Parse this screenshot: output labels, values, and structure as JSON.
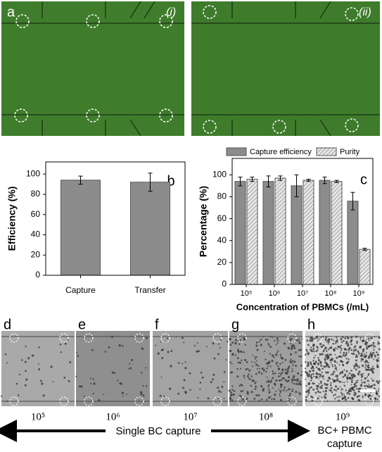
{
  "panel_a": {
    "label": "a",
    "images": [
      "(i)",
      "(ii)"
    ]
  },
  "chart_data": [
    {
      "type": "bar",
      "panel_label": "b",
      "ylabel": "Efficiency (%)",
      "categories": [
        "Capture",
        "Transfer"
      ],
      "values": [
        94,
        92
      ],
      "errors": [
        4,
        9
      ],
      "color": "#8c8c8c",
      "ylim": [
        0,
        112
      ],
      "yticks": [
        0,
        20,
        40,
        60,
        80,
        100
      ]
    },
    {
      "type": "grouped-bar",
      "panel_label": "c",
      "xlabel": "Concentration of PBMCs (/mL)",
      "ylabel": "Percentage (%)",
      "categories": [
        "10⁵",
        "10⁶",
        "10⁷",
        "10⁸",
        "10⁹"
      ],
      "legend": "top",
      "series": [
        {
          "name": "Capture efficiency",
          "color": "#8c8c8c",
          "hatch": false,
          "values": [
            94,
            94,
            90,
            95,
            76
          ],
          "errors": [
            4,
            5,
            10,
            3,
            8
          ]
        },
        {
          "name": "Purity",
          "color": "#e0e0e0",
          "hatch": true,
          "values": [
            96,
            97,
            95,
            94,
            32
          ],
          "errors": [
            2,
            2,
            1,
            1,
            1
          ]
        }
      ],
      "ylim": [
        0,
        115
      ],
      "yticks": [
        0,
        20,
        40,
        60,
        80,
        100
      ]
    }
  ],
  "panels_bottom": [
    {
      "label": "d",
      "concentration": "10⁵"
    },
    {
      "label": "e",
      "concentration": "10⁶"
    },
    {
      "label": "f",
      "concentration": "10⁷"
    },
    {
      "label": "g",
      "concentration": "10⁸"
    },
    {
      "label": "h",
      "concentration": "10⁹"
    }
  ],
  "arrow_label": "Single BC capture",
  "end_label": [
    "BC+ PBMC",
    "capture"
  ]
}
